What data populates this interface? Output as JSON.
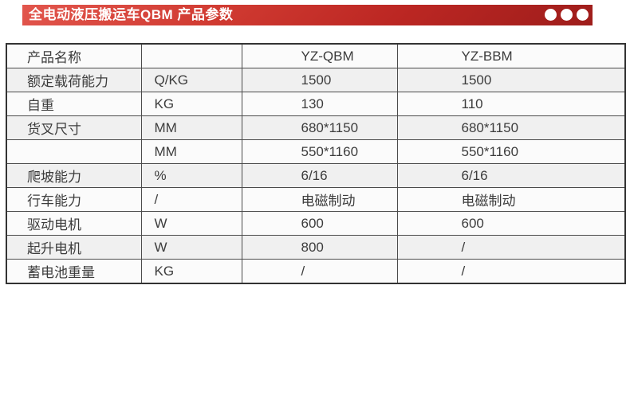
{
  "header": {
    "title": "全电动液压搬运车QBM 产品参数",
    "dot_count": 3,
    "colors": {
      "bar_red_light": "#e2564d",
      "bar_red_dark": "#9e1d1b",
      "dot": "#ffffff",
      "title_text": "#ffffff"
    }
  },
  "table": {
    "colors": {
      "row_white": "#fbfbfb",
      "row_gray": "#f0f0f0",
      "border": "#4b4b4b",
      "text": "#3c3c3c"
    },
    "rows": [
      {
        "cells": [
          "产品名称",
          "",
          "YZ-QBM",
          "YZ-BBM"
        ]
      },
      {
        "cells": [
          "额定载荷能力",
          "Q/KG",
          "1500",
          "1500"
        ]
      },
      {
        "cells": [
          "自重",
          "KG",
          "130",
          "110"
        ]
      },
      {
        "cells": [
          "货叉尺寸",
          "MM",
          "680*1150",
          "680*1150"
        ]
      },
      {
        "cells": [
          "",
          "MM",
          "550*1160",
          "550*1160"
        ]
      },
      {
        "cells": [
          "爬坡能力",
          "%",
          "6/16",
          "6/16"
        ]
      },
      {
        "cells": [
          "行车能力",
          "/",
          "电磁制动",
          "电磁制动"
        ]
      },
      {
        "cells": [
          "驱动电机",
          "W",
          "600",
          "600"
        ]
      },
      {
        "cells": [
          "起升电机",
          "W",
          "800",
          "/"
        ]
      },
      {
        "cells": [
          "蓄电池重量",
          "KG",
          "/",
          "/"
        ]
      }
    ]
  }
}
